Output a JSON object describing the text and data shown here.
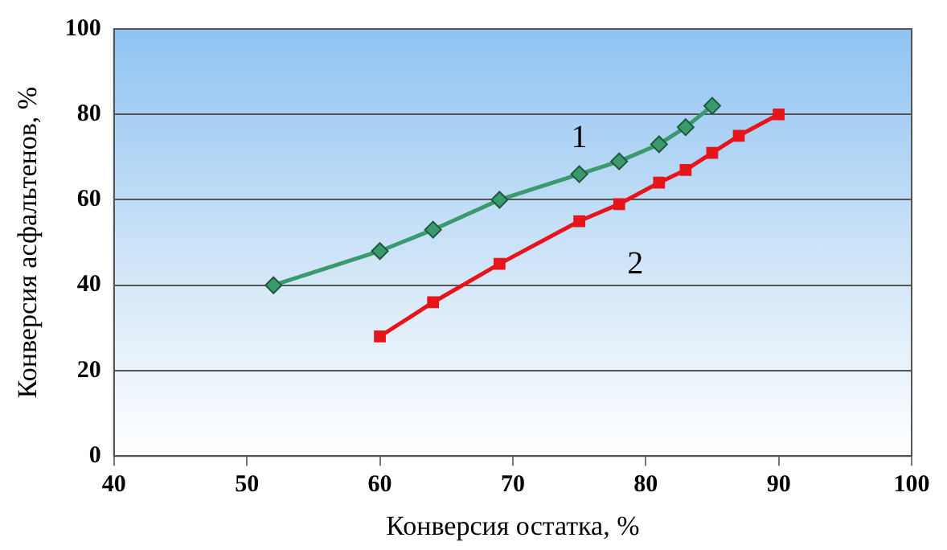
{
  "chart_data": {
    "type": "line",
    "xlabel": "Конверсия остатка, %",
    "ylabel": "Конверсия асфальтенов, %",
    "xlim": [
      40,
      100
    ],
    "xticks": [
      40,
      50,
      60,
      70,
      80,
      90,
      100
    ],
    "ylim": [
      0,
      100
    ],
    "yticks": [
      0,
      20,
      40,
      60,
      80,
      100
    ],
    "grid": "y",
    "legend": false,
    "line_style": "solid",
    "series": [
      {
        "name": "1",
        "color": "#3a9a6e",
        "marker": "diamond",
        "x": [
          52,
          60,
          64,
          69,
          75,
          78,
          81,
          83,
          85
        ],
        "values": [
          40,
          48,
          53,
          60,
          66,
          69,
          73,
          77,
          82
        ]
      },
      {
        "name": "2",
        "color": "#e8141c",
        "marker": "square",
        "x": [
          60,
          64,
          69,
          75,
          78,
          81,
          83,
          85,
          87,
          90
        ],
        "values": [
          28,
          36,
          45,
          55,
          59,
          64,
          67,
          71,
          75,
          80
        ]
      }
    ]
  }
}
